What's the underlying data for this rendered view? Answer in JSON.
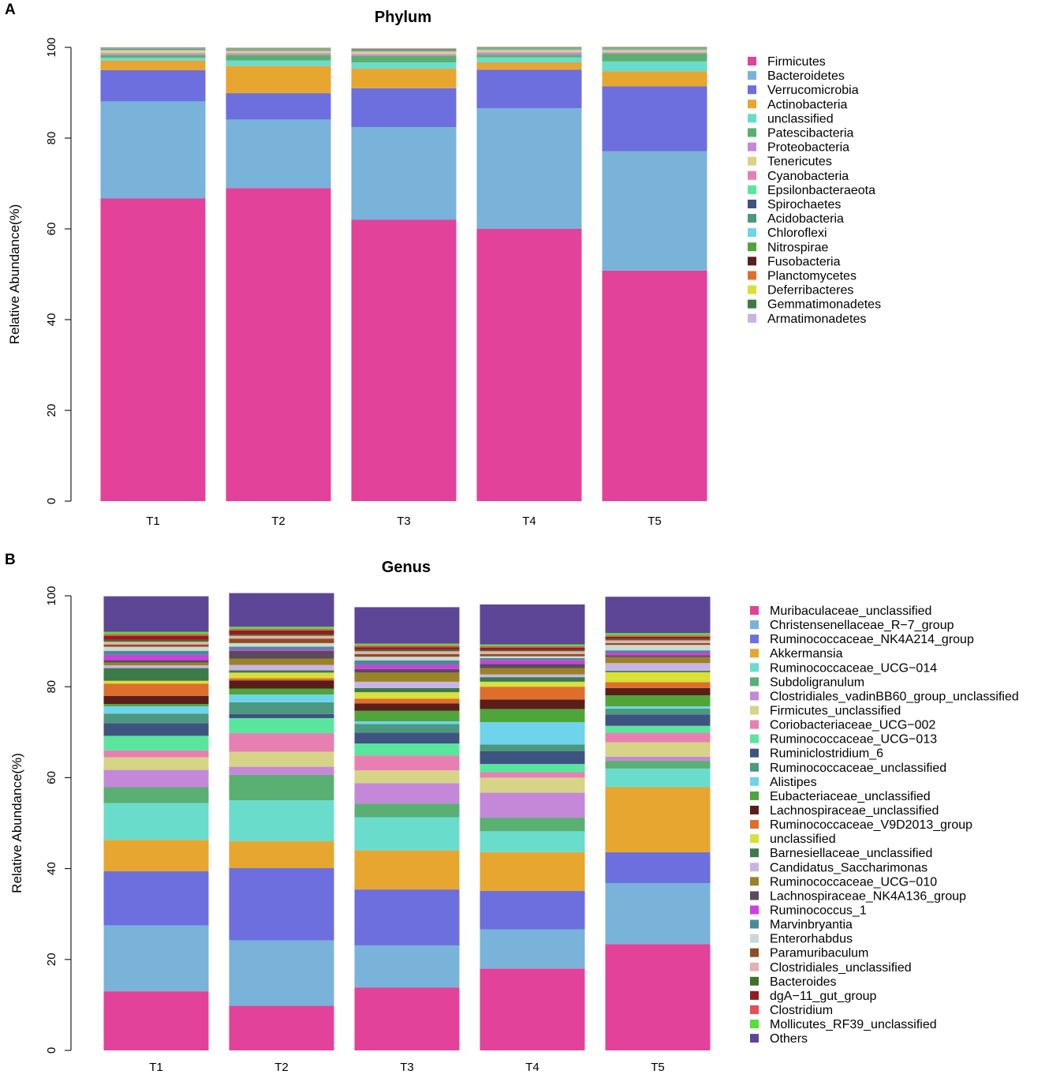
{
  "chart_data": [
    {
      "type": "bar",
      "stacked": true,
      "panel_label": "A",
      "title": "Phylum",
      "xlabel": "",
      "ylabel": "Relative Abundance(%)",
      "ylim": [
        0,
        100
      ],
      "yticks": [
        "0",
        "20",
        "40",
        "60",
        "80",
        "100"
      ],
      "categories": [
        "T1",
        "T2",
        "T3",
        "T4",
        "T5"
      ],
      "legend_position": "right",
      "grid": false,
      "series": [
        {
          "name": "Firmicutes",
          "color": "#e2429a",
          "values": [
            66.7,
            69.0,
            62.0,
            60.0,
            50.8
          ]
        },
        {
          "name": "Bacteroidetes",
          "color": "#79b3da",
          "values": [
            21.4,
            15.1,
            20.4,
            26.6,
            26.3
          ]
        },
        {
          "name": "Verrucomicrobia",
          "color": "#6c6fdd",
          "values": [
            6.9,
            5.8,
            8.6,
            8.5,
            14.3
          ]
        },
        {
          "name": "Actinobacteria",
          "color": "#e6a630",
          "values": [
            2.1,
            6.0,
            4.3,
            1.6,
            3.3
          ]
        },
        {
          "name": "unclassified",
          "color": "#6adccc",
          "values": [
            0.6,
            1.2,
            1.4,
            1.1,
            2.2
          ]
        },
        {
          "name": "Patescibacteria",
          "color": "#5aaf72",
          "values": [
            0.6,
            1.2,
            1.4,
            0.6,
            1.7
          ]
        },
        {
          "name": "Proteobacteria",
          "color": "#c588d8",
          "values": [
            0.4,
            0.4,
            0.4,
            0.5,
            0.3
          ]
        },
        {
          "name": "Tenericutes",
          "color": "#d6d486",
          "values": [
            0.6,
            0.5,
            0.5,
            0.5,
            0.5
          ]
        },
        {
          "name": "Cyanobacteria",
          "color": "#e87fb2",
          "values": [
            0.1,
            0.1,
            0.2,
            0.1,
            0.1
          ]
        },
        {
          "name": "Epsilonbacteraeota",
          "color": "#58e69c",
          "values": [
            0.1,
            0.1,
            0.1,
            0.1,
            0.1
          ]
        },
        {
          "name": "Spirochaetes",
          "color": "#3f5380",
          "values": [
            0.1,
            0.1,
            0.1,
            0.1,
            0.1
          ]
        },
        {
          "name": "Acidobacteria",
          "color": "#4c9880",
          "values": [
            0.1,
            0.1,
            0.1,
            0.1,
            0.1
          ]
        },
        {
          "name": "Chloroflexi",
          "color": "#6ed4ec",
          "values": [
            0.05,
            0.05,
            0.05,
            0.05,
            0.05
          ]
        },
        {
          "name": "Nitrospirae",
          "color": "#4fa43a",
          "values": [
            0.05,
            0.05,
            0.05,
            0.05,
            0.05
          ]
        },
        {
          "name": "Fusobacteria",
          "color": "#5a1e1a",
          "values": [
            0.05,
            0.05,
            0.05,
            0.05,
            0.05
          ]
        },
        {
          "name": "Planctomycetes",
          "color": "#de6e2c",
          "values": [
            0.05,
            0.05,
            0.05,
            0.05,
            0.05
          ]
        },
        {
          "name": "Deferribacteres",
          "color": "#d8e03a",
          "values": [
            0.05,
            0.05,
            0.05,
            0.05,
            0.05
          ]
        },
        {
          "name": "Gemmatimonadetes",
          "color": "#3c7a4a",
          "values": [
            0.05,
            0.05,
            0.05,
            0.05,
            0.05
          ]
        },
        {
          "name": "Armatimonadetes",
          "color": "#c9b4e6",
          "values": [
            0.05,
            0.05,
            0.05,
            0.05,
            0.05
          ]
        }
      ]
    },
    {
      "type": "bar",
      "stacked": true,
      "panel_label": "B",
      "title": "Genus",
      "xlabel": "",
      "ylabel": "Relative Abundance(%)",
      "ylim": [
        0,
        100
      ],
      "yticks": [
        "0",
        "20",
        "40",
        "60",
        "80",
        "100"
      ],
      "categories": [
        "T1",
        "T2",
        "T3",
        "T4",
        "T5"
      ],
      "legend_position": "right",
      "grid": false,
      "series": [
        {
          "name": "Muribaculaceae_unclassified",
          "color": "#e2429a",
          "values": [
            13.0,
            9.8,
            13.8,
            18.0,
            23.4
          ]
        },
        {
          "name": "Christensenellaceae_R−7_group",
          "color": "#79b3da",
          "values": [
            14.5,
            14.4,
            9.3,
            8.6,
            13.4
          ]
        },
        {
          "name": "Ruminococcaceae_NK4A214_group",
          "color": "#6c6fdd",
          "values": [
            11.9,
            15.9,
            12.3,
            8.5,
            6.8
          ]
        },
        {
          "name": "Akkermansia",
          "color": "#e6a630",
          "values": [
            6.9,
            5.9,
            8.6,
            8.5,
            14.3
          ]
        },
        {
          "name": "Ruminococcaceae_UCG−014",
          "color": "#6adccc",
          "values": [
            8.1,
            9.0,
            7.3,
            4.6,
            4.1
          ]
        },
        {
          "name": "Subdoligranulum",
          "color": "#5aaf72",
          "values": [
            3.5,
            5.6,
            3.0,
            3.0,
            1.7
          ]
        },
        {
          "name": "Clostridiales_vadinBB60_group_unclassified",
          "color": "#c588d8",
          "values": [
            3.8,
            1.8,
            4.5,
            5.5,
            0.9
          ]
        },
        {
          "name": "Firmicutes_unclassified",
          "color": "#d6d486",
          "values": [
            2.8,
            3.3,
            2.8,
            3.3,
            3.2
          ]
        },
        {
          "name": "Coriobacteriaceae_UCG−002",
          "color": "#e87fb2",
          "values": [
            1.5,
            4.1,
            3.3,
            1.2,
            2.1
          ]
        },
        {
          "name": "Ruminococcaceae_UCG−013",
          "color": "#58e69c",
          "values": [
            3.2,
            3.3,
            2.6,
            1.8,
            1.5
          ]
        },
        {
          "name": "Ruminiclostridium_6",
          "color": "#3f5380",
          "values": [
            2.8,
            0.9,
            2.4,
            2.8,
            2.5
          ]
        },
        {
          "name": "Ruminococcaceae_unclassified",
          "color": "#4c9880",
          "values": [
            2.1,
            2.6,
            1.9,
            1.5,
            1.3
          ]
        },
        {
          "name": "Alistipes",
          "color": "#6ed4ec",
          "values": [
            1.6,
            1.7,
            0.6,
            4.9,
            0.5
          ]
        },
        {
          "name": "Eubacteriaceae_unclassified",
          "color": "#4fa43a",
          "values": [
            0.5,
            1.3,
            2.3,
            2.9,
            2.4
          ]
        },
        {
          "name": "Lachnospiraceae_unclassified",
          "color": "#5a1e1a",
          "values": [
            1.8,
            1.8,
            1.6,
            2.1,
            1.6
          ]
        },
        {
          "name": "Ruminococcaceae_V9D2013_group",
          "color": "#de6e2c",
          "values": [
            2.7,
            0.5,
            1.1,
            2.8,
            1.3
          ]
        },
        {
          "name": "unclassified",
          "color": "#d8e03a",
          "values": [
            0.6,
            1.2,
            1.4,
            1.1,
            2.2
          ]
        },
        {
          "name": "Barnesiellaceae_unclassified",
          "color": "#3c7a4a",
          "values": [
            2.8,
            0.5,
            0.9,
            1.0,
            0.3
          ]
        },
        {
          "name": "Candidatus_Saccharimonas",
          "color": "#c9b4e6",
          "values": [
            0.6,
            1.2,
            1.4,
            0.6,
            1.7
          ]
        },
        {
          "name": "Ruminococcaceae_UCG−010",
          "color": "#9a8226",
          "values": [
            0.6,
            1.4,
            2.0,
            1.4,
            1.3
          ]
        },
        {
          "name": "Lachnospiraceae_NK4A136_group",
          "color": "#5a4a5c",
          "values": [
            0.6,
            1.7,
            0.8,
            0.9,
            0.4
          ]
        },
        {
          "name": "Ruminococcus_1",
          "color": "#cf3fe0",
          "values": [
            1.1,
            0.3,
            0.9,
            0.8,
            0.6
          ]
        },
        {
          "name": "Marvinbryantia",
          "color": "#4a8a98",
          "values": [
            0.9,
            0.6,
            1.0,
            0.5,
            0.5
          ]
        },
        {
          "name": "Enterorhabdus",
          "color": "#c9dad6",
          "values": [
            0.9,
            0.8,
            0.8,
            0.4,
            1.2
          ]
        },
        {
          "name": "Paramuribaculum",
          "color": "#8e4e22",
          "values": [
            0.5,
            1.0,
            0.6,
            0.5,
            0.4
          ]
        },
        {
          "name": "Clostridiales_unclassified",
          "color": "#e6b0b0",
          "values": [
            0.6,
            0.6,
            0.6,
            0.6,
            0.6
          ]
        },
        {
          "name": "Bacteroides",
          "color": "#40702a",
          "values": [
            0.4,
            0.3,
            0.4,
            0.3,
            0.3
          ]
        },
        {
          "name": "dgA−11_gut_group",
          "color": "#8e1e22",
          "values": [
            0.9,
            0.9,
            0.5,
            0.5,
            0.5
          ]
        },
        {
          "name": "Clostridium",
          "color": "#e84c54",
          "values": [
            0.4,
            0.3,
            0.4,
            0.3,
            0.3
          ]
        },
        {
          "name": "Mollicutes_RF39_unclassified",
          "color": "#58dc3c",
          "values": [
            0.5,
            0.5,
            0.4,
            0.4,
            0.5
          ]
        },
        {
          "name": "Others",
          "color": "#5e4696",
          "values": [
            7.8,
            7.4,
            8.0,
            8.8,
            8.0
          ]
        }
      ]
    }
  ]
}
